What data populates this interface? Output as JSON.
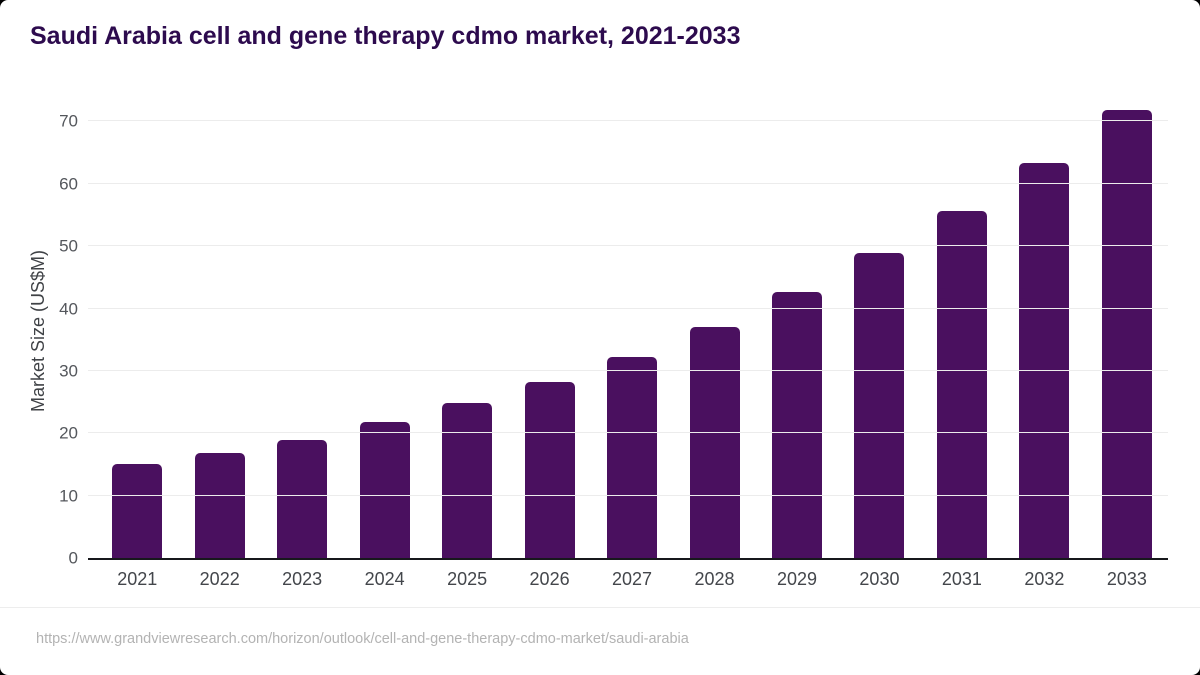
{
  "page": {
    "title": "Saudi Arabia cell and gene therapy cdmo market, 2021-2033",
    "source_url": "https://www.grandviewresearch.com/horizon/outlook/cell-and-gene-therapy-cdmo-market/saudi-arabia"
  },
  "colors": {
    "bar": "#4a105f",
    "title": "#2d0b4e",
    "axis_line": "#17181c",
    "gridline": "#ececec",
    "tick_label": "#54575c",
    "x_label": "#43464b",
    "url_text": "#b3b3b3"
  },
  "chart_data": {
    "type": "bar",
    "title": "Saudi Arabia cell and gene therapy cdmo market, 2021-2033",
    "categories": [
      "2021",
      "2022",
      "2023",
      "2024",
      "2025",
      "2026",
      "2027",
      "2028",
      "2029",
      "2030",
      "2031",
      "2032",
      "2033"
    ],
    "values": [
      15.0,
      16.8,
      19.0,
      21.8,
      24.8,
      28.2,
      32.3,
      37.1,
      42.7,
      48.9,
      55.6,
      63.3,
      71.8
    ],
    "xlabel": "",
    "ylabel": "Market Size (US$M)",
    "yticks": [
      0,
      10,
      20,
      30,
      40,
      50,
      60,
      70
    ],
    "ylim": [
      0,
      72.8
    ],
    "grid": true,
    "legend": false
  }
}
